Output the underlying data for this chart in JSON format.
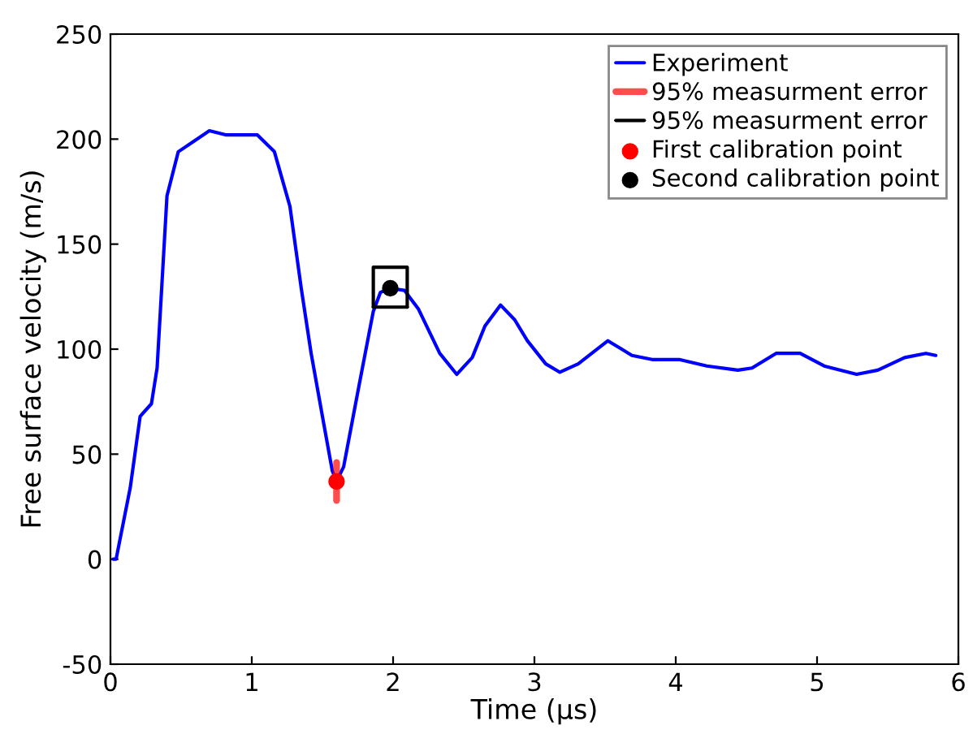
{
  "chart_data": {
    "type": "line",
    "xlabel": "Time (µs)",
    "ylabel": "Free surface velocity (m/s)",
    "xlim": [
      0,
      6
    ],
    "ylim": [
      -50,
      250
    ],
    "xticks": [
      0,
      1,
      2,
      3,
      4,
      5,
      6
    ],
    "yticks": [
      {
        "value": -50,
        "label": "-50"
      },
      0,
      50,
      100,
      150,
      200,
      250
    ],
    "grid": false,
    "legend": "top right",
    "series": [
      {
        "name": "Experiment",
        "type": "line",
        "color": "#0000ff",
        "x": [
          0.02,
          0.04,
          0.14,
          0.21,
          0.29,
          0.33,
          0.4,
          0.48,
          0.59,
          0.7,
          0.82,
          1.04,
          1.16,
          1.27,
          1.35,
          1.42,
          1.5,
          1.57,
          1.6,
          1.65,
          1.76,
          1.86,
          1.91,
          1.98,
          2.08,
          2.18,
          2.33,
          2.45,
          2.56,
          2.65,
          2.76,
          2.86,
          2.95,
          3.08,
          3.18,
          3.31,
          3.52,
          3.69,
          3.84,
          4.03,
          4.22,
          4.44,
          4.54,
          4.71,
          4.88,
          5.05,
          5.28,
          5.43,
          5.62,
          5.77,
          5.84
        ],
        "values": [
          0,
          0,
          34,
          68,
          74,
          91,
          173,
          194,
          199,
          204,
          202,
          202,
          194,
          168,
          129,
          98,
          68,
          42,
          37,
          44,
          83,
          118,
          127,
          129,
          128,
          119,
          98,
          88,
          96,
          111,
          121,
          114,
          104,
          93,
          89,
          93,
          104,
          97,
          95,
          95,
          92,
          90,
          91,
          98,
          98,
          92,
          88,
          90,
          96,
          98,
          97
        ]
      },
      {
        "name": "95% measurment error",
        "type": "line",
        "color": "#ff0000",
        "x": [
          1.6,
          1.6
        ],
        "values": [
          28,
          46
        ]
      },
      {
        "name": "95% measurment error",
        "type": "line",
        "color": "#000000",
        "x": [
          1.86,
          1.86,
          2.1,
          2.1
        ],
        "values": [
          120,
          139,
          139,
          120
        ]
      },
      {
        "type": "line",
        "color": "#000000",
        "x": [
          1.86,
          2.1
        ],
        "values": [
          120,
          120
        ]
      },
      {
        "name": "First calibration point",
        "type": "scatter",
        "color": "#ff0000",
        "x": [
          1.6
        ],
        "values": [
          37
        ]
      },
      {
        "name": "Second calibration point",
        "type": "scatter",
        "color": "#000000",
        "x": [
          1.98
        ],
        "values": [
          129
        ]
      }
    ]
  }
}
